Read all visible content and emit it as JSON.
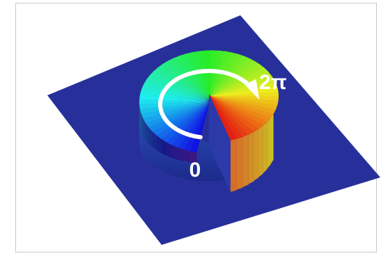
{
  "labels": {
    "start": "0",
    "end": "2π"
  }
}
